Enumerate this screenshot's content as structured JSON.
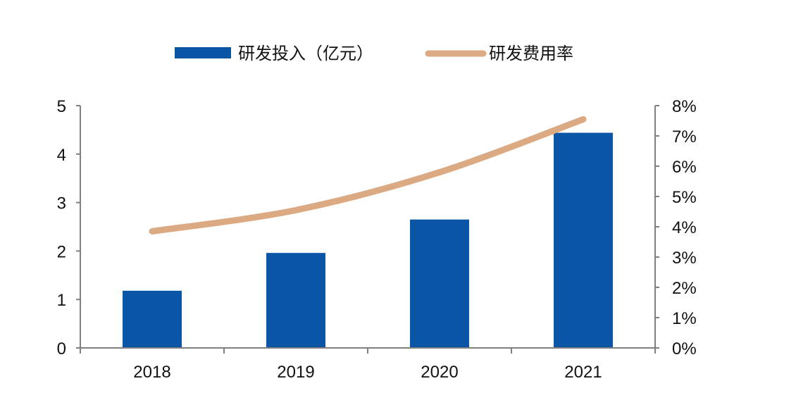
{
  "chart_data": {
    "type": "bar",
    "categories": [
      "2018",
      "2019",
      "2020",
      "2021"
    ],
    "series": [
      {
        "name": "研发投入（亿元）",
        "type": "bar",
        "axis": "left",
        "color": "#0b55a6",
        "values": [
          1.18,
          1.96,
          2.65,
          4.44
        ]
      },
      {
        "name": "研发费用率",
        "type": "line",
        "axis": "right",
        "color": "#dcaa82",
        "values": [
          0.0385,
          0.0455,
          0.058,
          0.0755
        ]
      }
    ],
    "y_left": {
      "ylim": [
        0,
        5
      ],
      "ticks": [
        "0",
        "1",
        "2",
        "3",
        "4",
        "5"
      ]
    },
    "y_right": {
      "ylim": [
        0,
        0.08
      ],
      "ticks": [
        "0%",
        "1%",
        "2%",
        "3%",
        "4%",
        "5%",
        "6%",
        "7%",
        "8%"
      ]
    },
    "legend_position": "top-center",
    "grid": false,
    "axis_color": "#808080"
  }
}
